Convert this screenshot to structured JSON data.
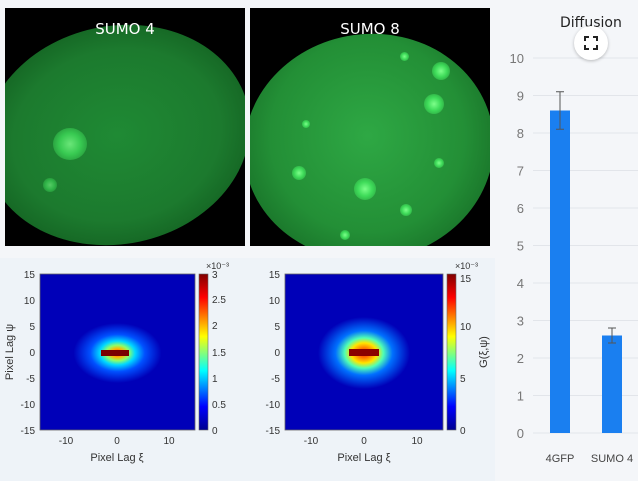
{
  "images": [
    {
      "title": "SUMO 4"
    },
    {
      "title": "SUMO 8"
    }
  ],
  "acf_plots": [
    {
      "ylabel": "Pixel Lag ψ",
      "xlabel": "Pixel Lag ξ",
      "xticks": [
        "-10",
        "0",
        "10"
      ],
      "yticks": [
        "15",
        "10",
        "5",
        "0",
        "-5",
        "-10",
        "-15"
      ],
      "colorbar_exponent": "×10⁻³",
      "colorbar_ticks": [
        "3",
        "2.5",
        "2",
        "1.5",
        "1",
        "0.5",
        "0"
      ],
      "colorbar_label": ""
    },
    {
      "ylabel": "",
      "xlabel": "Pixel Lag ξ",
      "xticks": [
        "-10",
        "0",
        "10"
      ],
      "yticks": [
        "15",
        "10",
        "5",
        "0",
        "-5",
        "-10",
        "-15"
      ],
      "colorbar_exponent": "×10⁻³",
      "colorbar_ticks": [
        "15",
        "10",
        "5",
        "0"
      ],
      "colorbar_label": "G(ξ,ψ)"
    }
  ],
  "chart_data": {
    "type": "bar",
    "title": "Diffusion",
    "categories": [
      "4GFP",
      "SUMO 4"
    ],
    "values": [
      8.6,
      2.6
    ],
    "errors": [
      0.5,
      0.2
    ],
    "ylim": [
      0,
      10
    ],
    "yticks": [
      "10",
      "9",
      "8",
      "7",
      "6",
      "5",
      "4",
      "3",
      "2",
      "1",
      "0"
    ],
    "bar_color": "#1a7ff0",
    "grid": true
  },
  "ui": {
    "expand_icon": "expand-icon"
  }
}
